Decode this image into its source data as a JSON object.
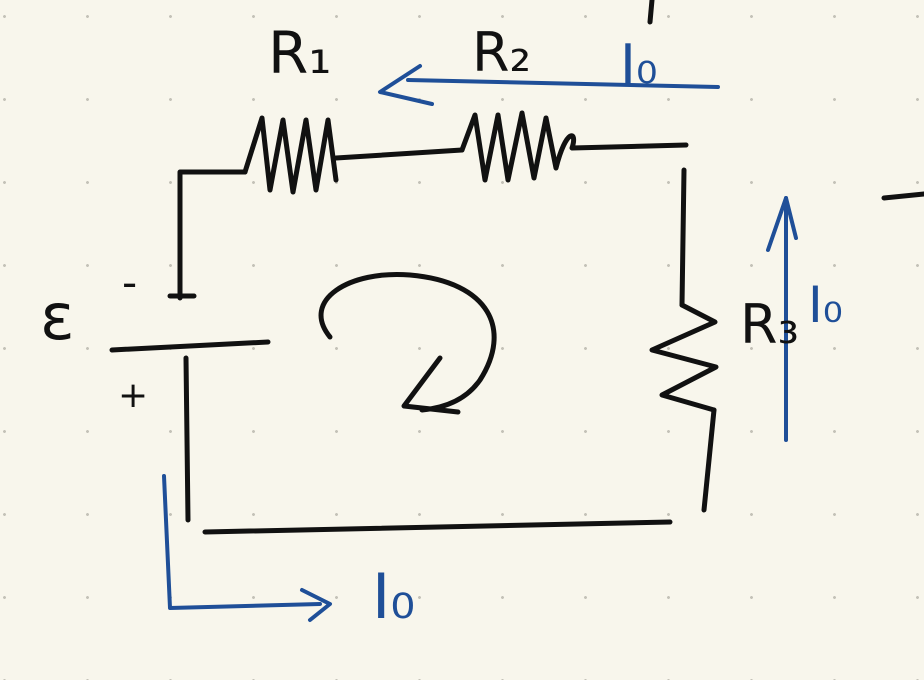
{
  "colors": {
    "background": "#f8f6ec",
    "grid_dot": "#c4c2b8",
    "ink_black": "#111111",
    "ink_blue": "#1f4f98"
  },
  "labels": {
    "r1": "R₁",
    "r2": "R₂",
    "r3": "R₃",
    "emf": "ε",
    "minus": "-",
    "plus": "+",
    "current_top": "I₀",
    "current_right": "I₀",
    "current_bottom": "I₀"
  },
  "components": [
    {
      "id": "R1",
      "kind": "resistor"
    },
    {
      "id": "R2",
      "kind": "resistor"
    },
    {
      "id": "R3",
      "kind": "resistor"
    },
    {
      "id": "emf",
      "kind": "battery"
    }
  ],
  "annotations": {
    "loop_direction": "clockwise",
    "current_top_direction": "left",
    "current_right_direction": "up",
    "current_bottom_direction": "right"
  }
}
